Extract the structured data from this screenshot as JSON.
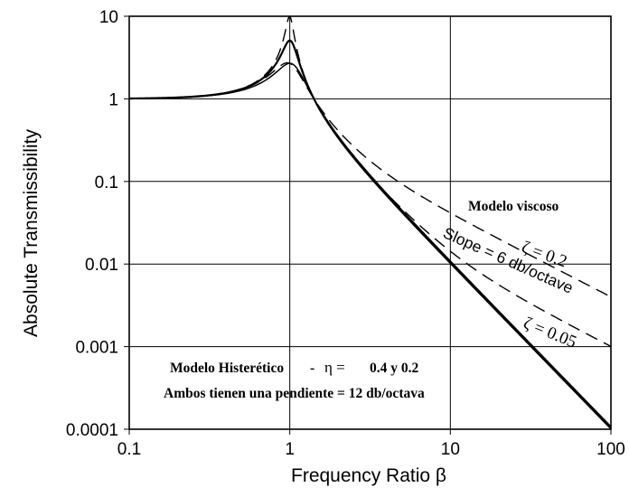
{
  "chart_data": {
    "type": "line",
    "title": "",
    "xlabel": "Frequency Ratio  β",
    "ylabel": "Absolute Transmissibility",
    "xscale": "log",
    "yscale": "log",
    "xlim": [
      0.1,
      100
    ],
    "ylim": [
      0.0001,
      10
    ],
    "grid": true,
    "x_ticks": [
      "0.1",
      "1",
      "10",
      "100"
    ],
    "y_ticks": [
      "10",
      "1",
      "0.1",
      "0.01",
      "0.001",
      "0.0001"
    ],
    "series": [
      {
        "style": "solid",
        "model": "hysteretic",
        "eta": 0.2,
        "peak": 5.0,
        "x": [
          0.1,
          0.5,
          0.9,
          1.0,
          1.1,
          2,
          5,
          10,
          100
        ],
        "y": [
          1.0,
          1.33,
          3.8,
          5.0,
          3.7,
          0.34,
          0.042,
          0.0101,
          0.0001
        ]
      },
      {
        "style": "solid",
        "model": "hysteretic",
        "eta": 0.4,
        "peak": 2.7,
        "x": [
          0.1,
          0.5,
          0.9,
          1.0,
          1.1,
          2,
          5,
          10,
          100
        ],
        "y": [
          1.0,
          1.33,
          2.5,
          2.7,
          2.4,
          0.35,
          0.042,
          0.0101,
          0.0001
        ]
      },
      {
        "name": "ζ = 0.2",
        "style": "dashed",
        "model": "viscous",
        "x": [
          0.1,
          1,
          2,
          5,
          10,
          100
        ],
        "y": [
          1.0,
          2.7,
          0.39,
          0.092,
          0.041,
          0.004
        ]
      },
      {
        "name": "ζ = 0.05",
        "style": "dashed",
        "model": "viscous",
        "x": [
          0.1,
          1,
          2,
          5,
          10,
          100
        ],
        "y": [
          1.0,
          10.0,
          0.34,
          0.045,
          0.0143,
          0.001
        ]
      }
    ],
    "annotations": {
      "viscous_title": "Modelo viscoso",
      "zeta_high": "ζ = 0.2",
      "slope": "Slope = 6 db/octave",
      "zeta_low": "ζ = 0.05",
      "hyst_label": "Modelo Histerético",
      "hyst_dash": "-",
      "hyst_eta": "η =",
      "hyst_values": "0.4 y 0.2",
      "hyst_slope": "Ambos tienen una pendiente = 12 db/octava"
    }
  }
}
